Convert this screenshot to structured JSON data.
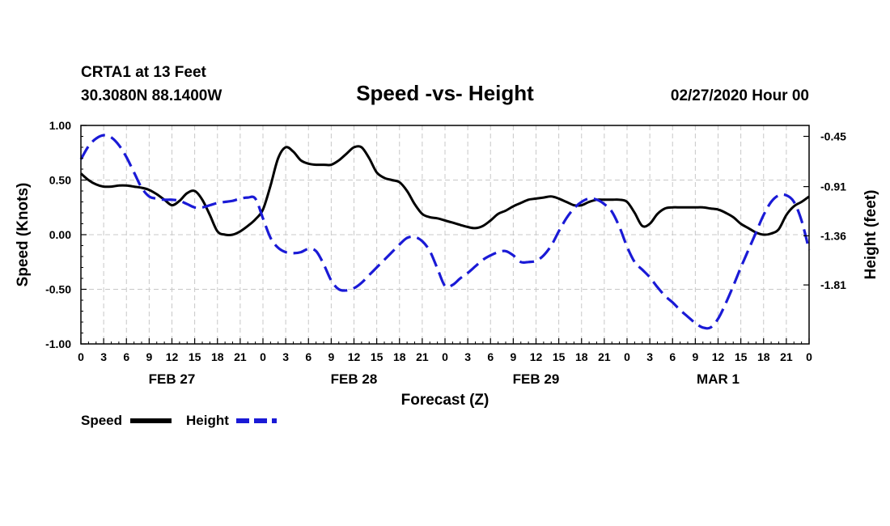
{
  "header": {
    "station": "CRTA1 at 13 Feet",
    "coords": "30.3080N 88.1400W",
    "title": "Speed -vs- Height",
    "datetime": "02/27/2020 Hour 00"
  },
  "legend": {
    "speed_label": "Speed",
    "height_label": "Height"
  },
  "colors": {
    "speed": "#000000",
    "height": "#1a1ad6",
    "grid": "#c8c8c8"
  },
  "chart_data": {
    "type": "line",
    "title": "Speed -vs- Height",
    "xlabel": "Forecast (Z)",
    "ylabel": "Speed (Knots)",
    "y2label": "Height (feet)",
    "xlim": [
      0,
      96
    ],
    "ylim": [
      -1.0,
      1.0
    ],
    "y2lim": [
      -2.35,
      -0.35
    ],
    "x_ticks": [
      0,
      3,
      6,
      9,
      12,
      15,
      18,
      21,
      24,
      27,
      30,
      33,
      36,
      39,
      42,
      45,
      48,
      51,
      54,
      57,
      60,
      63,
      66,
      69,
      72,
      75,
      78,
      81,
      84,
      87,
      90,
      93,
      96
    ],
    "x_tick_labels": [
      "0",
      "3",
      "6",
      "9",
      "12",
      "15",
      "18",
      "21",
      "0",
      "3",
      "6",
      "9",
      "12",
      "15",
      "18",
      "21",
      "0",
      "3",
      "6",
      "9",
      "12",
      "15",
      "18",
      "21",
      "0",
      "3",
      "6",
      "9",
      "12",
      "15",
      "18",
      "21",
      "0"
    ],
    "day_labels": [
      {
        "x": 12,
        "label": "FEB 27"
      },
      {
        "x": 36,
        "label": "FEB 28"
      },
      {
        "x": 60,
        "label": "FEB 29"
      },
      {
        "x": 84,
        "label": "MAR 1"
      }
    ],
    "y_ticks": [
      1.0,
      0.5,
      0.0,
      -0.5,
      -1.0
    ],
    "y_tick_labels": [
      "1.00",
      "0.50",
      "0.00",
      "-0.50",
      "-1.00"
    ],
    "y2_ticks": [
      -0.45,
      -0.91,
      -1.36,
      -1.81
    ],
    "y2_tick_labels": [
      "-0.45",
      "-0.91",
      "-1.36",
      "-1.81"
    ],
    "grid": true,
    "series": [
      {
        "name": "Speed",
        "axis": "left",
        "style": "solid",
        "x": [
          0,
          1,
          2,
          3,
          4,
          5,
          6,
          7,
          8,
          9,
          10,
          11,
          12,
          13,
          14,
          15,
          16,
          17,
          18,
          19,
          20,
          21,
          22,
          23,
          24,
          25,
          26,
          27,
          28,
          29,
          30,
          31,
          32,
          33,
          34,
          35,
          36,
          37,
          38,
          39,
          40,
          41,
          42,
          43,
          44,
          45,
          46,
          47,
          48,
          49,
          50,
          51,
          52,
          53,
          54,
          55,
          56,
          57,
          58,
          59,
          60,
          61,
          62,
          63,
          64,
          65,
          66,
          67,
          68,
          69,
          70,
          71,
          72,
          73,
          74,
          75,
          76,
          77,
          78,
          79,
          80,
          81,
          82,
          83,
          84,
          85,
          86,
          87,
          88,
          89,
          90,
          91,
          92,
          93,
          94,
          95,
          96
        ],
        "values": [
          0.56,
          0.5,
          0.46,
          0.44,
          0.44,
          0.45,
          0.45,
          0.44,
          0.43,
          0.41,
          0.37,
          0.32,
          0.27,
          0.31,
          0.38,
          0.4,
          0.32,
          0.18,
          0.03,
          0.0,
          0.0,
          0.03,
          0.08,
          0.14,
          0.23,
          0.45,
          0.7,
          0.8,
          0.76,
          0.68,
          0.65,
          0.64,
          0.64,
          0.64,
          0.68,
          0.74,
          0.8,
          0.8,
          0.7,
          0.57,
          0.52,
          0.5,
          0.48,
          0.4,
          0.28,
          0.19,
          0.16,
          0.15,
          0.13,
          0.11,
          0.09,
          0.07,
          0.06,
          0.08,
          0.13,
          0.19,
          0.22,
          0.26,
          0.29,
          0.32,
          0.33,
          0.34,
          0.35,
          0.33,
          0.3,
          0.27,
          0.27,
          0.3,
          0.32,
          0.32,
          0.32,
          0.32,
          0.3,
          0.2,
          0.08,
          0.1,
          0.19,
          0.24,
          0.25,
          0.25,
          0.25,
          0.25,
          0.25,
          0.24,
          0.23,
          0.2,
          0.16,
          0.1,
          0.06,
          0.02,
          0.0,
          0.01,
          0.05,
          0.18,
          0.26,
          0.3,
          0.35
        ]
      },
      {
        "name": "Height",
        "axis": "right",
        "style": "dashed",
        "x": [
          0,
          1,
          2,
          3,
          4,
          5,
          6,
          7,
          8,
          9,
          10,
          11,
          12,
          13,
          14,
          15,
          16,
          17,
          18,
          19,
          20,
          21,
          22,
          23,
          24,
          25,
          26,
          27,
          28,
          29,
          30,
          31,
          32,
          33,
          34,
          35,
          36,
          37,
          38,
          39,
          40,
          41,
          42,
          43,
          44,
          45,
          46,
          47,
          48,
          49,
          50,
          51,
          52,
          53,
          54,
          55,
          56,
          57,
          58,
          59,
          60,
          61,
          62,
          63,
          64,
          65,
          66,
          67,
          68,
          69,
          70,
          71,
          72,
          73,
          74,
          75,
          76,
          77,
          78,
          79,
          80,
          81,
          82,
          83,
          84,
          85,
          86,
          87,
          88,
          89,
          90,
          91,
          92,
          93,
          94,
          95,
          96
        ],
        "values": [
          -0.66,
          -0.54,
          -0.47,
          -0.44,
          -0.46,
          -0.53,
          -0.64,
          -0.78,
          -0.92,
          -1.0,
          -1.02,
          -1.03,
          -1.03,
          -1.04,
          -1.07,
          -1.1,
          -1.1,
          -1.08,
          -1.06,
          -1.05,
          -1.04,
          -1.02,
          -1.01,
          -1.02,
          -1.2,
          -1.38,
          -1.47,
          -1.51,
          -1.52,
          -1.51,
          -1.48,
          -1.5,
          -1.62,
          -1.77,
          -1.85,
          -1.86,
          -1.84,
          -1.79,
          -1.72,
          -1.65,
          -1.58,
          -1.51,
          -1.44,
          -1.38,
          -1.37,
          -1.41,
          -1.5,
          -1.66,
          -1.82,
          -1.81,
          -1.75,
          -1.7,
          -1.64,
          -1.58,
          -1.54,
          -1.51,
          -1.5,
          -1.54,
          -1.6,
          -1.6,
          -1.59,
          -1.54,
          -1.45,
          -1.32,
          -1.2,
          -1.11,
          -1.05,
          -1.02,
          -1.03,
          -1.07,
          -1.14,
          -1.28,
          -1.46,
          -1.6,
          -1.67,
          -1.74,
          -1.83,
          -1.91,
          -1.97,
          -2.04,
          -2.1,
          -2.16,
          -2.2,
          -2.2,
          -2.12,
          -1.98,
          -1.82,
          -1.65,
          -1.49,
          -1.33,
          -1.17,
          -1.05,
          -0.99,
          -0.99,
          -1.05,
          -1.22,
          -1.49
        ]
      }
    ]
  }
}
